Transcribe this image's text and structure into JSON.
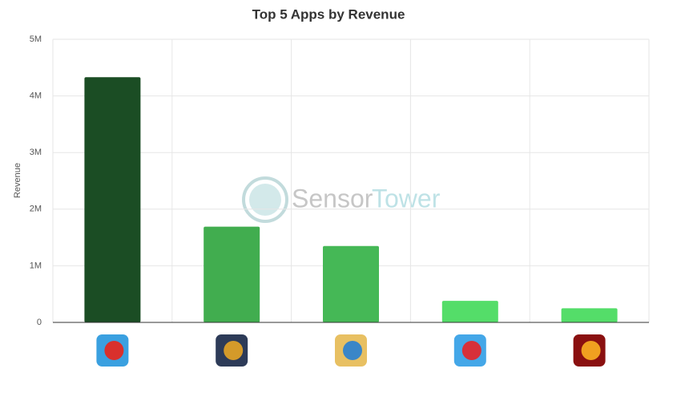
{
  "chart_data": {
    "type": "bar",
    "title": "Top 5 Apps by Revenue",
    "y_label": "Revenue",
    "categories": [
      null,
      null,
      null,
      null,
      null
    ],
    "values": [
      4330000,
      1690000,
      1350000,
      380000,
      250000
    ],
    "colors": [
      "#1b4d24",
      "#41ad4f",
      "#45b856",
      "#54dd69",
      "#54dd69"
    ],
    "ylim": [
      0,
      5000000
    ],
    "yticks": [
      0,
      {
        "value": 1000000,
        "label": "1M"
      },
      {
        "value": 2000000,
        "label": "2M"
      },
      {
        "value": 3000000,
        "label": "3M"
      },
      {
        "value": 4000000,
        "label": "4M"
      },
      {
        "value": 5000000,
        "label": "5M"
      }
    ],
    "grid": true,
    "watermark": [
      "Sensor",
      "Tower"
    ]
  }
}
